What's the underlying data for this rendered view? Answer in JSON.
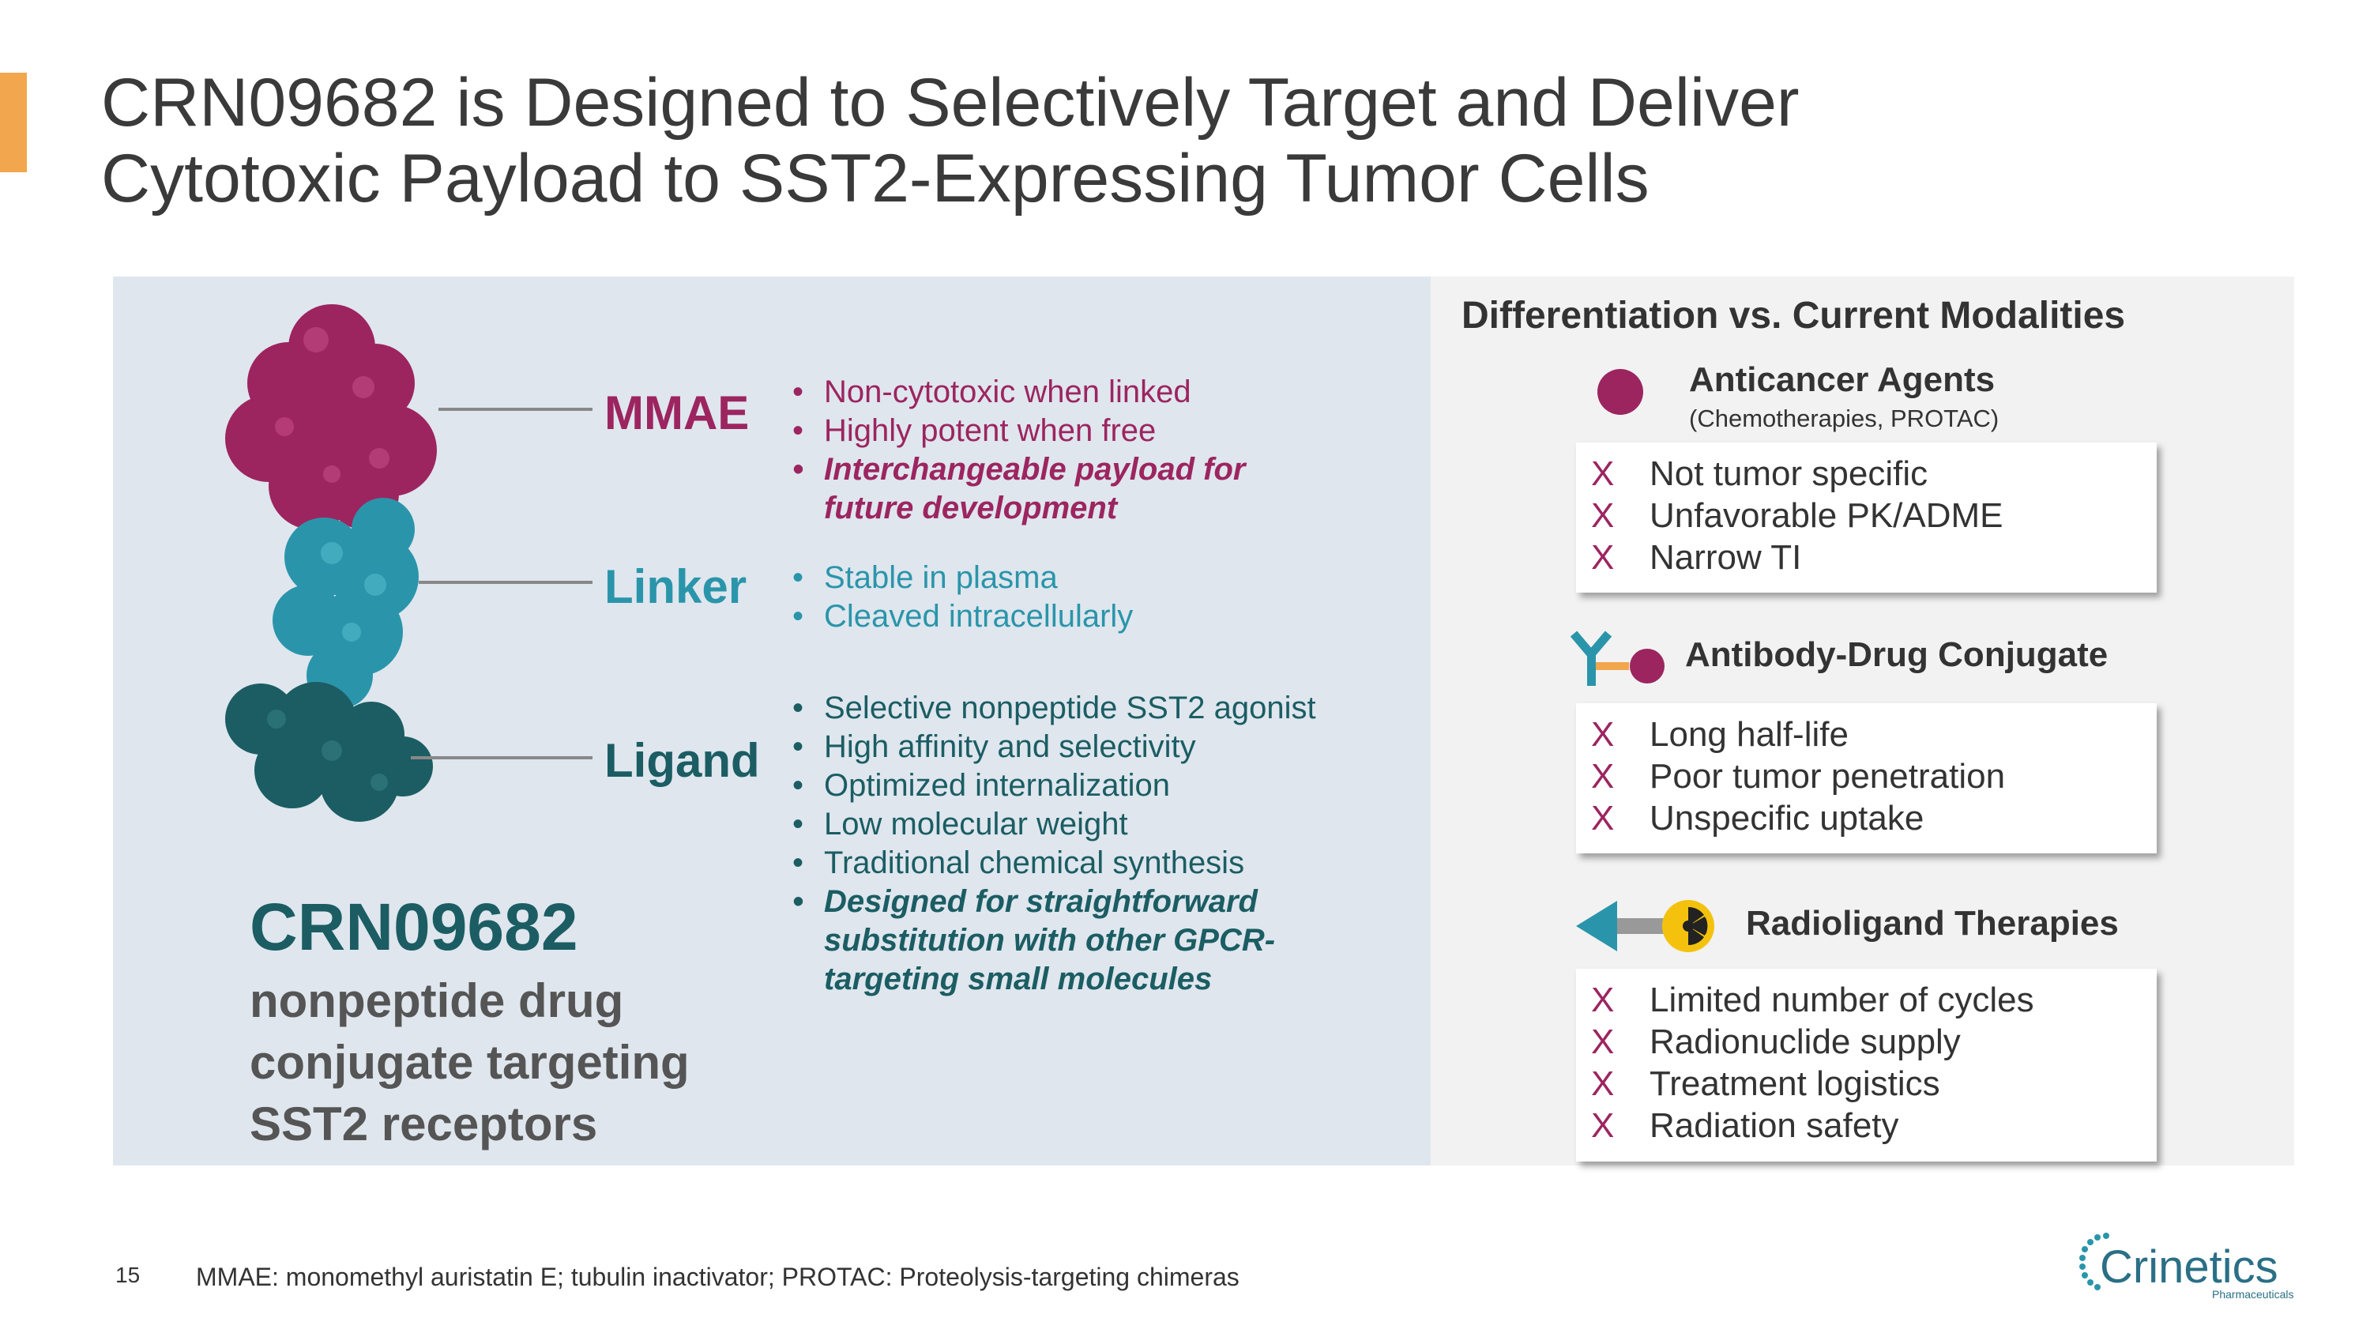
{
  "title": {
    "line1": "CRN09682 is Designed to Selectively Target and Deliver",
    "line2": "Cytotoxic Payload to SST2-Expressing Tumor Cells"
  },
  "components": {
    "mmae": {
      "label": "MMAE",
      "bullets": [
        "Non-cytotoxic when linked",
        "Highly potent when free"
      ],
      "emphasis": [
        "Interchangeable payload for",
        "future development"
      ]
    },
    "linker": {
      "label": "Linker",
      "bullets": [
        "Stable in plasma",
        "Cleaved intracellularly"
      ]
    },
    "ligand": {
      "label": "Ligand",
      "bullets": [
        "Selective nonpeptide SST2 agonist",
        "High affinity and selectivity",
        "Optimized internalization",
        "Low molecular weight",
        "Traditional chemical synthesis"
      ],
      "emphasis": [
        "Designed for straightforward",
        "substitution with other GPCR-",
        "targeting small molecules"
      ]
    }
  },
  "drug": {
    "name": "CRN09682",
    "desc_lines": [
      "nonpeptide drug",
      "conjugate targeting",
      "SST2 receptors"
    ]
  },
  "differentiation": {
    "title": "Differentiation vs. Current Modalities",
    "mark": "X",
    "categories": [
      {
        "title": "Anticancer Agents",
        "subtitle": "(Chemotherapies, PROTAC)",
        "items": [
          "Not tumor specific",
          "Unfavorable PK/ADME",
          "Narrow TI"
        ]
      },
      {
        "title": "Antibody-Drug Conjugate",
        "items": [
          "Long half-life",
          "Poor tumor penetration",
          "Unspecific uptake"
        ]
      },
      {
        "title": "Radioligand Therapies",
        "items": [
          "Limited number of cycles",
          "Radionuclide supply",
          "Treatment logistics",
          "Radiation safety"
        ]
      }
    ]
  },
  "footer": {
    "page_number": "15",
    "footnote": "MMAE: monomethyl auristatin E; tubulin inactivator; PROTAC: Proteolysis-targeting chimeras"
  },
  "logo": {
    "name": "Crinetics",
    "sub": "Pharmaceuticals"
  },
  "colors": {
    "accent": "#f2a64d",
    "mmae": "#9c2560",
    "linker": "#2a95aa",
    "ligand": "#1b5d63"
  }
}
